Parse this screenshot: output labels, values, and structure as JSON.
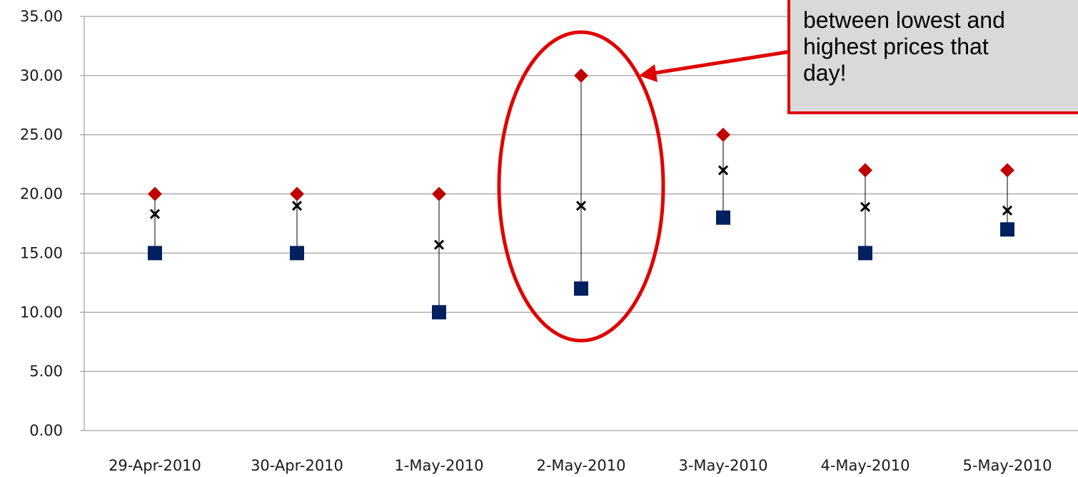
{
  "chart_data": {
    "type": "scatter",
    "categories": [
      "29-Apr-2010",
      "30-Apr-2010",
      "1-May-2010",
      "2-May-2010",
      "3-May-2010",
      "4-May-2010",
      "5-May-2010"
    ],
    "ylim": [
      0,
      35
    ],
    "yticks": [
      "0.00",
      "5.00",
      "10.00",
      "15.00",
      "20.00",
      "25.00",
      "30.00",
      "35.00"
    ],
    "grid": true,
    "series": [
      {
        "marker": "diamond",
        "color": "#c00000",
        "values": [
          20,
          20,
          20,
          30,
          25,
          22,
          22
        ]
      },
      {
        "marker": "square",
        "color": "#002060",
        "values": [
          15,
          15,
          10,
          12,
          18,
          15,
          17
        ]
      },
      {
        "marker": "x",
        "color": "#000000",
        "values": [
          18.3,
          19.0,
          15.7,
          19.0,
          22.0,
          18.9,
          18.6
        ]
      }
    ],
    "annotation": {
      "lines": [
        "between lowest and",
        "highest prices that",
        "day!"
      ],
      "highlight_category": "2-May-2010",
      "border_color": "#e00000",
      "fill_color": "#d9d9d9"
    }
  }
}
